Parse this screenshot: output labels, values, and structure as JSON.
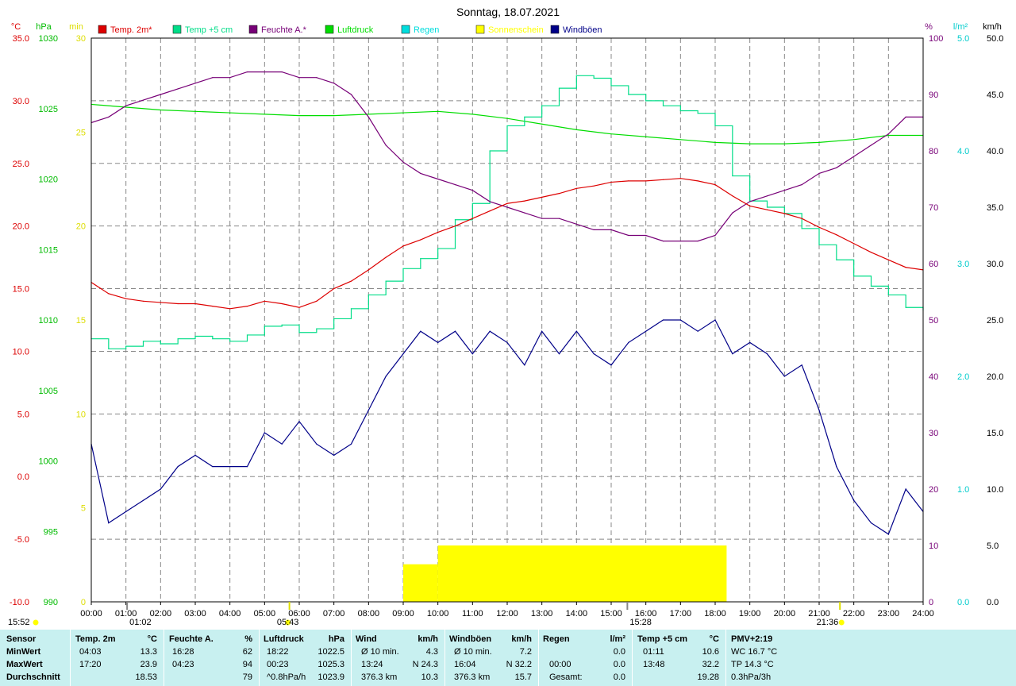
{
  "title": "Sonntag, 18.07.2021",
  "colors": {
    "temp": "#dd0000",
    "temp5": "#00dd88",
    "humidity": "#770077",
    "pressure": "#00dd00",
    "rain": "#00dddd",
    "sun": "#ffff00",
    "gust": "#000088",
    "axis_temp": "#dd0000",
    "axis_pressure": "#00bb00",
    "axis_sun": "#dddd00",
    "axis_hum": "#770077",
    "axis_rain": "#00cccc",
    "axis_gust": "#000000",
    "table_bg": "#c8f0f0"
  },
  "axis_units": {
    "temp": "°C",
    "pressure": "hPa",
    "sun": "min",
    "humidity": "%",
    "rain": "l/m²",
    "gust": "km/h"
  },
  "legend": [
    "Temp. 2m*",
    "Temp +5 cm",
    "Feuchte A.*",
    "Luftdruck",
    "Regen",
    "Sonnenschein",
    "Windböen"
  ],
  "chart_data": {
    "type": "line",
    "title": "Sonntag, 18.07.2021",
    "x_ticks": [
      "00:00",
      "01:00",
      "02:00",
      "03:00",
      "04:00",
      "05:00",
      "06:00",
      "07:00",
      "08:00",
      "09:00",
      "10:00",
      "11:00",
      "12:00",
      "13:00",
      "14:00",
      "15:00",
      "16:00",
      "17:00",
      "18:00",
      "19:00",
      "20:00",
      "21:00",
      "22:00",
      "23:00",
      "24:00"
    ],
    "axes": {
      "temp": {
        "ticks": [
          "35.0",
          "30.0",
          "25.0",
          "20.0",
          "15.0",
          "10.0",
          "5.0",
          "0.0",
          "-5.0",
          "-10.0"
        ],
        "ylim": [
          -10,
          35
        ]
      },
      "pressure": {
        "ticks": [
          "1030",
          "1025",
          "1020",
          "1015",
          "1010",
          "1005",
          "1000",
          "995",
          "990"
        ],
        "ylim": [
          990,
          1030
        ]
      },
      "sun": {
        "ticks": [
          "30",
          "25",
          "20",
          "15",
          "10",
          "5",
          "0"
        ],
        "ylim": [
          0,
          30
        ]
      },
      "humidity": {
        "ticks": [
          "100",
          "90",
          "80",
          "70",
          "60",
          "50",
          "40",
          "30",
          "20",
          "10",
          "0"
        ],
        "ylim": [
          0,
          100
        ]
      },
      "rain": {
        "ticks": [
          "5.0",
          "4.0",
          "3.0",
          "2.0",
          "1.0",
          "0.0"
        ],
        "ylim": [
          0,
          5
        ]
      },
      "gust": {
        "ticks": [
          "50.0",
          "45.0",
          "40.0",
          "35.0",
          "30.0",
          "25.0",
          "20.0",
          "15.0",
          "10.0",
          "5.0",
          "0.0"
        ],
        "ylim": [
          0,
          50
        ]
      }
    },
    "series": [
      {
        "name": "Temp. 2m*",
        "axis": "temp",
        "x": [
          0,
          0.5,
          1,
          1.5,
          2,
          2.5,
          3,
          3.5,
          4,
          4.5,
          5,
          5.5,
          6,
          6.5,
          7,
          7.5,
          8,
          8.5,
          9,
          9.5,
          10,
          10.5,
          11,
          11.5,
          12,
          12.5,
          13,
          13.5,
          14,
          14.5,
          15,
          15.5,
          16,
          16.5,
          17,
          17.5,
          18,
          18.5,
          19,
          19.5,
          20,
          20.5,
          21,
          21.5,
          22,
          22.5,
          23,
          23.5,
          24
        ],
        "y": [
          15.5,
          14.6,
          14.2,
          14.0,
          13.9,
          13.8,
          13.8,
          13.6,
          13.4,
          13.6,
          14.0,
          13.8,
          13.5,
          14.0,
          15.0,
          15.6,
          16.5,
          17.5,
          18.4,
          18.9,
          19.5,
          20.0,
          20.6,
          21.2,
          21.8,
          22.0,
          22.3,
          22.6,
          23.0,
          23.2,
          23.5,
          23.6,
          23.6,
          23.7,
          23.8,
          23.6,
          23.3,
          22.4,
          21.6,
          21.3,
          21.0,
          20.6,
          19.9,
          19.3,
          18.6,
          17.9,
          17.3,
          16.7,
          16.5
        ]
      },
      {
        "name": "Temp +5 cm",
        "axis": "temp",
        "x": [
          0,
          0.5,
          1,
          1.5,
          2,
          2.5,
          3,
          3.5,
          4,
          4.5,
          5,
          5.5,
          6,
          6.5,
          7,
          7.5,
          8,
          8.5,
          9,
          9.5,
          10,
          10.5,
          11,
          11.5,
          12,
          12.5,
          13,
          13.5,
          14,
          14.5,
          15,
          15.5,
          16,
          16.5,
          17,
          17.5,
          18,
          18.5,
          19,
          19.5,
          20,
          20.5,
          21,
          21.5,
          22,
          22.5,
          23,
          23.5,
          24
        ],
        "y": [
          11.0,
          10.2,
          10.4,
          10.8,
          10.6,
          11.0,
          11.2,
          11.0,
          10.8,
          11.3,
          12.0,
          12.1,
          11.5,
          11.8,
          12.6,
          13.4,
          14.5,
          15.6,
          16.6,
          17.4,
          18.2,
          20.5,
          21.8,
          26.0,
          28.0,
          28.7,
          29.6,
          31.0,
          32.0,
          31.8,
          31.2,
          30.5,
          30.0,
          29.6,
          29.2,
          29.0,
          28.0,
          24.0,
          22.0,
          21.5,
          21.0,
          19.8,
          18.5,
          17.3,
          16.0,
          15.2,
          14.5,
          13.5,
          13.3
        ]
      },
      {
        "name": "Feuchte A.*",
        "axis": "humidity",
        "x": [
          0,
          0.5,
          1,
          1.5,
          2,
          2.5,
          3,
          3.5,
          4,
          4.5,
          5,
          5.5,
          6,
          6.5,
          7,
          7.5,
          8,
          8.5,
          9,
          9.5,
          10,
          10.5,
          11,
          11.5,
          12,
          12.5,
          13,
          13.5,
          14,
          14.5,
          15,
          15.5,
          16,
          16.5,
          17,
          17.5,
          18,
          18.5,
          19,
          19.5,
          20,
          20.5,
          21,
          21.5,
          22,
          22.5,
          23,
          23.5,
          24
        ],
        "y": [
          85,
          86,
          88,
          89,
          90,
          91,
          92,
          93,
          93,
          94,
          94,
          94,
          93,
          93,
          92,
          90,
          86,
          81,
          78,
          76,
          75,
          74,
          73,
          71,
          70,
          69,
          68,
          68,
          67,
          66,
          66,
          65,
          65,
          64,
          64,
          64,
          65,
          69,
          71,
          72,
          73,
          74,
          76,
          77,
          79,
          81,
          83,
          86,
          86
        ]
      },
      {
        "name": "Luftdruck",
        "axis": "pressure",
        "x": [
          0,
          1,
          2,
          3,
          4,
          5,
          6,
          7,
          8,
          9,
          10,
          11,
          12,
          13,
          14,
          15,
          16,
          17,
          18,
          19,
          20,
          21,
          22,
          23,
          24
        ],
        "y": [
          1025.3,
          1025.1,
          1024.9,
          1024.8,
          1024.7,
          1024.6,
          1024.5,
          1024.5,
          1024.6,
          1024.7,
          1024.8,
          1024.6,
          1024.3,
          1023.9,
          1023.5,
          1023.2,
          1023.0,
          1022.8,
          1022.6,
          1022.5,
          1022.5,
          1022.6,
          1022.8,
          1023.1,
          1023.1
        ]
      },
      {
        "name": "Regen",
        "axis": "rain",
        "x": [
          0,
          24
        ],
        "y": [
          0,
          0
        ]
      },
      {
        "name": "Sonnenschein",
        "axis": "sun",
        "type": "step-area",
        "x": [
          0,
          9,
          10,
          18.33,
          24
        ],
        "y": [
          0,
          2,
          3,
          0,
          0
        ]
      },
      {
        "name": "Windböen",
        "axis": "gust",
        "x": [
          0,
          0.5,
          1,
          1.5,
          2,
          2.5,
          3,
          3.5,
          4,
          4.5,
          5,
          5.5,
          6,
          6.5,
          7,
          7.5,
          8,
          8.5,
          9,
          9.5,
          10,
          10.5,
          11,
          11.5,
          12,
          12.5,
          13,
          13.5,
          14,
          14.5,
          15,
          15.5,
          16,
          16.5,
          17,
          17.5,
          18,
          18.5,
          19,
          19.5,
          20,
          20.5,
          21,
          21.5,
          22,
          22.5,
          23,
          23.5,
          24
        ],
        "y": [
          14,
          7,
          8,
          9,
          10,
          12,
          13,
          12,
          12,
          12,
          15,
          14,
          16,
          14,
          13,
          14,
          17,
          20,
          22,
          24,
          23,
          24,
          22,
          24,
          23,
          21,
          24,
          22,
          24,
          22,
          21,
          23,
          24,
          25,
          25,
          24,
          25,
          22,
          23,
          22,
          20,
          21,
          17,
          12,
          9,
          7,
          6,
          10,
          8
        ]
      }
    ]
  },
  "table": {
    "headers": [
      "Sensor",
      "Temp. 2m",
      "°C",
      "Feuchte A.",
      "%",
      "Luftdruck",
      "hPa",
      "Wind",
      "km/h",
      "Windböen",
      "km/h",
      "Regen",
      "l/m²",
      "Temp +5 cm",
      "°C",
      "PMV+2:19"
    ],
    "row_labels": [
      "MinWert",
      "MaxWert",
      "Durchschnitt"
    ],
    "temp": [
      [
        "04:03",
        "13.3"
      ],
      [
        "17:20",
        "23.9"
      ],
      [
        "",
        "18.53"
      ]
    ],
    "hum": [
      [
        "16:28",
        "62"
      ],
      [
        "04:23",
        "94"
      ],
      [
        "",
        "79"
      ]
    ],
    "press": [
      [
        "18:22",
        "1022.5"
      ],
      [
        "00:23",
        "1025.3"
      ],
      [
        "^0.8hPa/h",
        "1023.9"
      ]
    ],
    "wind": [
      [
        "Ø 10 min.",
        "4.3"
      ],
      [
        "13:24",
        "N 24.3"
      ],
      [
        "376.3 km",
        "10.3"
      ]
    ],
    "gust": [
      [
        "Ø 10 min.",
        "7.2"
      ],
      [
        "16:04",
        "N 32.2"
      ],
      [
        "376.3 km",
        "15.7"
      ]
    ],
    "rain": [
      [
        "",
        "0.0"
      ],
      [
        "00:00",
        "0.0"
      ],
      [
        "Gesamt:",
        "0.0"
      ]
    ],
    "temp5": [
      [
        "01:11",
        "10.6"
      ],
      [
        "13:48",
        "32.2"
      ],
      [
        "",
        "19.28"
      ]
    ],
    "pmv": [
      "WC 16.7 °C",
      "TP 14.3 °C",
      "0.3hPa/3h"
    ]
  },
  "markers": {
    "sunrise": "05:43",
    "sunset": "21:36",
    "moonrise": "15:52",
    "time_a": "01:02",
    "time_b": "15:28"
  }
}
